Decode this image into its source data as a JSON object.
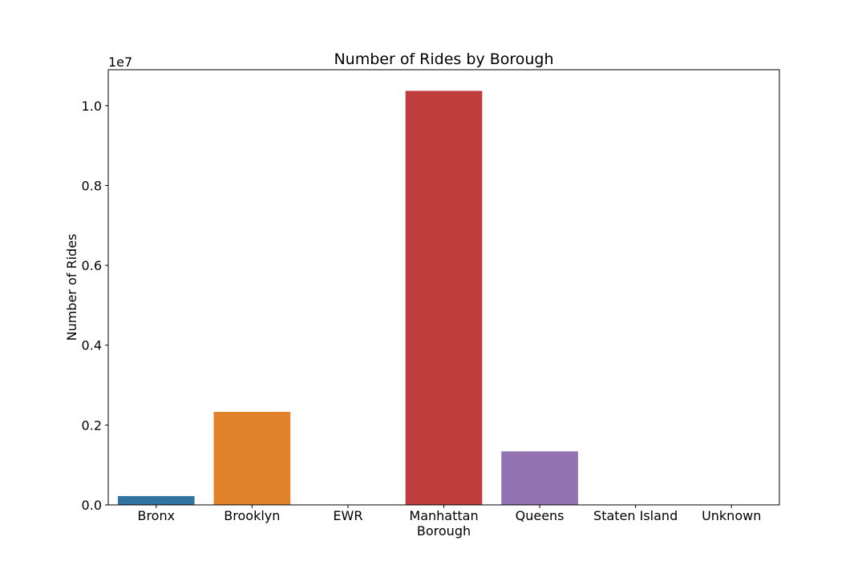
{
  "chart_data": {
    "type": "bar",
    "title": "Number of Rides by Borough",
    "xlabel": "Borough",
    "ylabel": "Number of Rides",
    "y_offset_label": "1e7",
    "categories": [
      "Bronx",
      "Brooklyn",
      "EWR",
      "Manhattan",
      "Queens",
      "Staten Island",
      "Unknown"
    ],
    "values": [
      220000,
      2330000,
      2000,
      10370000,
      1340000,
      5000,
      1000
    ],
    "colors": [
      "#3274a1",
      "#e1812c",
      "#3a923a",
      "#c03d3e",
      "#9372b2",
      "#845b53",
      "#d684bd"
    ],
    "ylim": [
      0,
      10900000
    ],
    "yticks": [
      0,
      2000000,
      4000000,
      6000000,
      8000000,
      10000000
    ],
    "ytick_labels": [
      "0.0",
      "0.2",
      "0.4",
      "0.6",
      "0.8",
      "1.0"
    ],
    "grid": false,
    "legend": "none"
  }
}
